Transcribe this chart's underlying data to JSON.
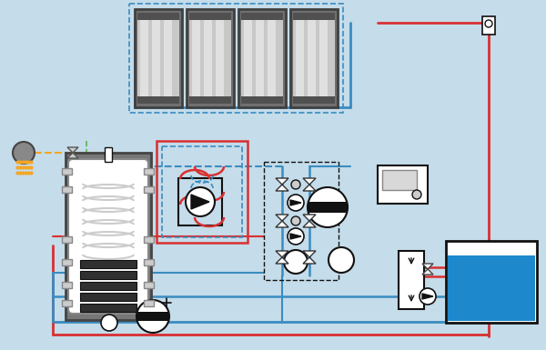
{
  "bg_color": "#c5dcea",
  "red": "#d93030",
  "blue": "#3a8cc0",
  "orange": "#f5a623",
  "green": "#5ab55a",
  "gray": "#888888",
  "light_gray": "#cccccc",
  "dark_gray": "#444444",
  "panel_body": "#909090",
  "panel_shine": "#d8d8d8",
  "pool_blue": "#1e88cc",
  "white": "#ffffff",
  "black": "#111111",
  "tank_gray": "#777777"
}
